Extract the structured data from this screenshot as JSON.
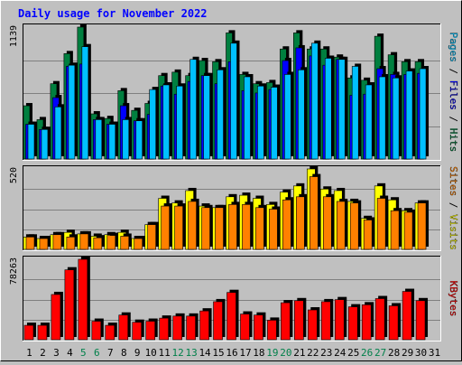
{
  "colors": {
    "background": "#c0c0c0",
    "hits": "#007f3f",
    "files": "#0000ff",
    "pages": "#00c0ff",
    "visits": "#ffff00",
    "sites": "#ff8000",
    "kbytes": "#ff0000",
    "title": "#0000ff",
    "weekend_label": "#00804a",
    "weekday_label": "#000000"
  },
  "chart_data": {
    "type": "bar",
    "title": "Daily usage for November 2022",
    "days": [
      "1",
      "2",
      "3",
      "4",
      "5",
      "6",
      "7",
      "8",
      "9",
      "10",
      "11",
      "12",
      "13",
      "14",
      "15",
      "16",
      "17",
      "18",
      "19",
      "20",
      "21",
      "22",
      "23",
      "24",
      "25",
      "26",
      "27",
      "28",
      "29",
      "30",
      "31"
    ],
    "weekend_days": [
      "5",
      "6",
      "12",
      "13",
      "19",
      "20",
      "26",
      "27"
    ],
    "panels": [
      {
        "ylabel_parts": [
          "Pages",
          "Files",
          "Hits"
        ],
        "ymax_label": "1139",
        "ymax": 1139,
        "series": [
          {
            "name": "Hits",
            "color_key": "hits",
            "values": [
              460,
              340,
              650,
              910,
              1139,
              390,
              350,
              590,
              420,
              480,
              720,
              750,
              720,
              850,
              840,
              1089,
              730,
              650,
              660,
              950,
              1089,
              950,
              950,
              880,
              700,
              680,
              1060,
              900,
              840,
              840,
              0
            ]
          },
          {
            "name": "Files",
            "color_key": "files",
            "values": [
              300,
              255,
              530,
              800,
              820,
              340,
              300,
              460,
              330,
              385,
              630,
              560,
              670,
              720,
              650,
              840,
              590,
              570,
              600,
              850,
              960,
              890,
              810,
              860,
              550,
              560,
              780,
              730,
              730,
              740,
              0
            ]
          },
          {
            "name": "Pages",
            "color_key": "pages",
            "values": [
              300,
              255,
              450,
              810,
              970,
              340,
              300,
              340,
              330,
              600,
              640,
              630,
              860,
              720,
              770,
              1000,
              710,
              630,
              620,
              730,
              770,
              1000,
              870,
              860,
              800,
              640,
              710,
              700,
              760,
              780,
              0
            ]
          }
        ]
      },
      {
        "ylabel_parts": [
          "Sites",
          "Visits"
        ],
        "ymax_label": "520",
        "ymax": 520,
        "series": [
          {
            "name": "Visits",
            "color_key": "visits",
            "values": [
              80,
              70,
              95,
              110,
              100,
              85,
              95,
              110,
              70,
              160,
              330,
              300,
              380,
              280,
              270,
              340,
              350,
              330,
              290,
              370,
              410,
              520,
              390,
              380,
              310,
              200,
              410,
              320,
              250,
              300,
              0
            ]
          },
          {
            "name": "Sites",
            "color_key": "sites",
            "values": [
              80,
              70,
              95,
              80,
              100,
              75,
              90,
              85,
              70,
              160,
              280,
              280,
              310,
              270,
              270,
              290,
              290,
              270,
              260,
              320,
              340,
              470,
              340,
              310,
              300,
              190,
              330,
              250,
              240,
              300,
              0
            ]
          }
        ]
      },
      {
        "ylabel_parts": [
          "KBytes"
        ],
        "ymax_label": "78263",
        "ymax": 78263,
        "series": [
          {
            "name": "KBytes",
            "color_key": "kbytes",
            "values": [
              14000,
              14000,
              44000,
              68000,
              78263,
              18000,
              14000,
              24000,
              17000,
              18000,
              21000,
              23000,
              23000,
              28000,
              37000,
              46000,
              25000,
              24000,
              19000,
              36000,
              38000,
              29000,
              37000,
              39000,
              32000,
              34000,
              40000,
              33000,
              47000,
              38000,
              0
            ]
          }
        ]
      }
    ]
  }
}
